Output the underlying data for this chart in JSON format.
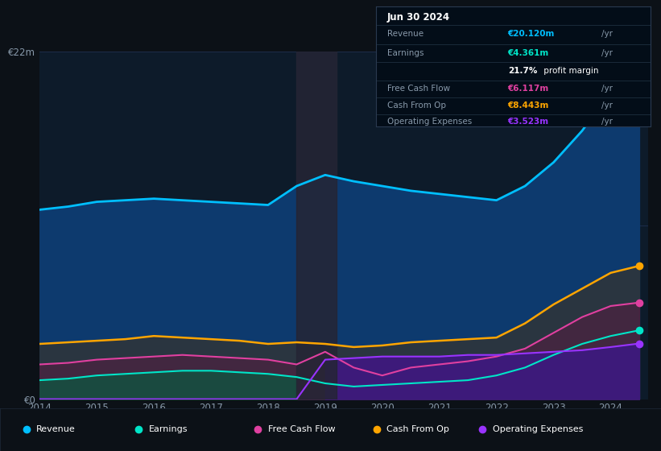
{
  "bg_color": "#0c1117",
  "chart_bg": "#0d1b2a",
  "grid_color": "#1e3050",
  "years": [
    2014,
    2014.5,
    2015,
    2015.5,
    2016,
    2016.5,
    2017,
    2017.5,
    2018,
    2018.5,
    2019,
    2019.5,
    2020,
    2020.5,
    2021,
    2021.5,
    2022,
    2022.5,
    2023,
    2023.5,
    2024,
    2024.5
  ],
  "revenue": [
    12.0,
    12.2,
    12.5,
    12.6,
    12.7,
    12.6,
    12.5,
    12.4,
    12.3,
    13.5,
    14.2,
    13.8,
    13.5,
    13.2,
    13.0,
    12.8,
    12.6,
    13.5,
    15.0,
    17.0,
    19.5,
    20.12
  ],
  "cash_from_op": [
    3.5,
    3.6,
    3.7,
    3.8,
    4.0,
    3.9,
    3.8,
    3.7,
    3.5,
    3.6,
    3.5,
    3.3,
    3.4,
    3.6,
    3.7,
    3.8,
    3.9,
    4.8,
    6.0,
    7.0,
    8.0,
    8.443
  ],
  "free_cash_flow": [
    2.2,
    2.3,
    2.5,
    2.6,
    2.7,
    2.8,
    2.7,
    2.6,
    2.5,
    2.2,
    3.0,
    2.0,
    1.5,
    2.0,
    2.2,
    2.4,
    2.7,
    3.2,
    4.2,
    5.2,
    5.9,
    6.117
  ],
  "earnings": [
    1.2,
    1.3,
    1.5,
    1.6,
    1.7,
    1.8,
    1.8,
    1.7,
    1.6,
    1.4,
    1.0,
    0.8,
    0.9,
    1.0,
    1.1,
    1.2,
    1.5,
    2.0,
    2.8,
    3.5,
    4.0,
    4.361
  ],
  "op_expenses": [
    0.0,
    0.0,
    0.0,
    0.0,
    0.0,
    0.0,
    0.0,
    0.0,
    0.0,
    0.0,
    2.5,
    2.6,
    2.7,
    2.7,
    2.7,
    2.8,
    2.8,
    2.9,
    3.0,
    3.1,
    3.3,
    3.523
  ],
  "revenue_color": "#00bfff",
  "earnings_color": "#00e5c8",
  "fcf_color": "#e040a0",
  "cashop_color": "#ffa500",
  "opex_color": "#9933ff",
  "ylim": [
    0,
    22
  ],
  "xlim": [
    2014,
    2024.65
  ],
  "xticks": [
    2014,
    2015,
    2016,
    2017,
    2018,
    2019,
    2020,
    2021,
    2022,
    2023,
    2024
  ],
  "info_box": {
    "date": "Jun 30 2024",
    "revenue_val": "€20.120m",
    "earnings_val": "€4.361m",
    "margin": "21.7%",
    "fcf_val": "€6.117m",
    "cashop_val": "€8.443m",
    "opex_val": "€3.523m"
  },
  "legend_items": [
    {
      "label": "Revenue",
      "color": "#00bfff"
    },
    {
      "label": "Earnings",
      "color": "#00e5c8"
    },
    {
      "label": "Free Cash Flow",
      "color": "#e040a0"
    },
    {
      "label": "Cash From Op",
      "color": "#ffa500"
    },
    {
      "label": "Operating Expenses",
      "color": "#9933ff"
    }
  ]
}
